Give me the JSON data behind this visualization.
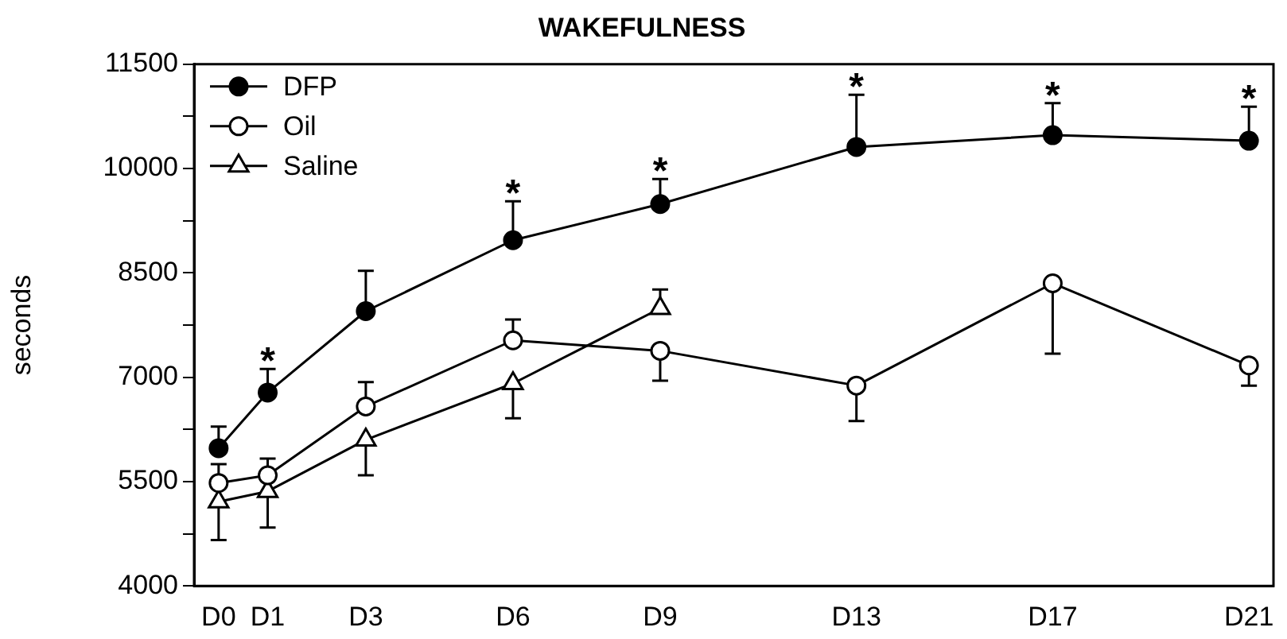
{
  "chart_data": {
    "type": "line",
    "title": "WAKEFULNESS",
    "ylabel": "seconds",
    "categories": [
      "D0",
      "D1",
      null,
      "D3",
      null,
      null,
      "D6",
      null,
      null,
      "D9",
      null,
      null,
      null,
      "D13",
      null,
      null,
      null,
      "D17",
      null,
      null,
      null,
      "D21"
    ],
    "ylim": [
      4000,
      11500
    ],
    "yticks": [
      4000,
      {
        "value": 4750,
        "label": null
      },
      5500,
      {
        "value": 6250,
        "label": null
      },
      7000,
      {
        "value": 7750,
        "label": null
      },
      8500,
      {
        "value": 9250,
        "label": null
      },
      10000,
      {
        "value": 10750,
        "label": null
      },
      11500
    ],
    "grid": false,
    "legend": "top left",
    "line_style": "solid",
    "series": [
      {
        "name": "DFP",
        "color": "#000000",
        "marker": "circle",
        "values": [
          5980,
          6780,
          null,
          7950,
          null,
          null,
          8970,
          null,
          null,
          9490,
          null,
          null,
          null,
          10310,
          null,
          null,
          null,
          10480,
          null,
          null,
          null,
          10400
        ],
        "errors": [
          [
            5980,
            6290
          ],
          [
            6780,
            7120
          ],
          null,
          [
            7950,
            8530
          ],
          null,
          null,
          [
            8970,
            9530
          ],
          null,
          null,
          [
            9490,
            9850
          ],
          null,
          null,
          null,
          [
            10310,
            11060
          ],
          null,
          null,
          null,
          [
            10480,
            10940
          ],
          null,
          null,
          null,
          [
            10400,
            10890
          ]
        ]
      },
      {
        "name": "Oil",
        "color": "#000000",
        "marker": "circle",
        "values": [
          5480,
          5590,
          null,
          6580,
          null,
          null,
          7530,
          null,
          null,
          7380,
          null,
          null,
          null,
          6880,
          null,
          null,
          null,
          8350,
          null,
          null,
          null,
          7170
        ],
        "errors": [
          [
            5480,
            5750
          ],
          [
            5590,
            5830
          ],
          null,
          [
            6580,
            6930
          ],
          null,
          null,
          [
            7530,
            7830
          ],
          null,
          null,
          [
            6950,
            7380
          ],
          null,
          null,
          null,
          [
            6370,
            6880
          ],
          null,
          null,
          null,
          [
            7340,
            8350
          ],
          null,
          null,
          null,
          [
            6880,
            7170
          ]
        ]
      },
      {
        "name": "Saline",
        "color": "#000000",
        "marker": "triangle",
        "values": [
          5210,
          5360,
          null,
          6100,
          null,
          null,
          6910,
          null,
          null,
          7990,
          null,
          null,
          null,
          null,
          null,
          null,
          null,
          null,
          null,
          null,
          null,
          null
        ],
        "errors": [
          [
            4660,
            5210
          ],
          [
            4840,
            5360
          ],
          null,
          [
            5590,
            6100
          ],
          null,
          null,
          [
            6410,
            6910
          ],
          null,
          null,
          [
            7990,
            8260
          ],
          null,
          null,
          null,
          null,
          null,
          null,
          null,
          null,
          null,
          null,
          null,
          null
        ]
      }
    ],
    "annotations": [
      {
        "text": "*",
        "x": "D1",
        "y": 7120
      },
      {
        "text": "*",
        "x": "D6",
        "y": 9530
      },
      {
        "text": "*",
        "x": "D9",
        "y": 9850
      },
      {
        "text": "*",
        "x": "D13",
        "y": 11060
      },
      {
        "text": "*",
        "x": "D17",
        "y": 10940
      },
      {
        "text": "*",
        "x": "D21",
        "y": 10890
      }
    ]
  }
}
